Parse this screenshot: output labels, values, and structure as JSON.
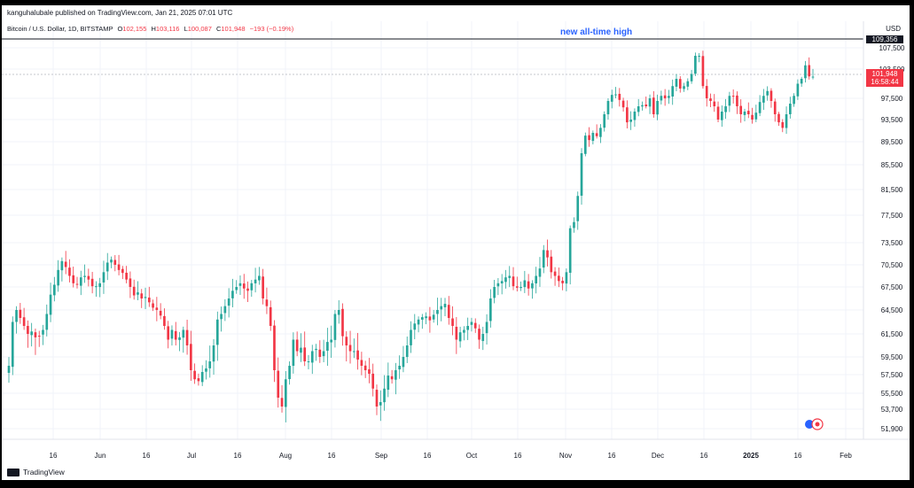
{
  "header": {
    "publisher": "kanguhalubale published on TradingView.com, Jan 21, 2025 07:01 UTC",
    "symbol": "Bitcoin / U.S. Dollar, 1D, BITSTAMP",
    "o_label": "O",
    "o_value": "102,155",
    "h_label": "H",
    "h_value": "103,116",
    "l_label": "L",
    "l_value": "100,087",
    "c_label": "C",
    "c_value": "101,948",
    "change": "−193 (−0.19%)",
    "currency": "USD"
  },
  "annotation": "new all-time high",
  "price_tag": {
    "price": "101,948",
    "countdown": "16:58:44"
  },
  "ath_tag": "109,356",
  "footer": {
    "brand": "TradingView"
  },
  "colors": {
    "up": "#26a69a",
    "down": "#f23645",
    "annotation": "#2962ff",
    "grid": "#f0f3fa"
  },
  "chart_data": {
    "type": "candlestick",
    "y_ticks": [
      "107,500",
      "103,500",
      "97,500",
      "93,500",
      "89,500",
      "85,500",
      "81,500",
      "77,500",
      "73,500",
      "70,500",
      "67,500",
      "64,500",
      "61,500",
      "59,500",
      "57,500",
      "55,500",
      "53,700",
      "51,900"
    ],
    "x_ticks": [
      "16",
      "Jun",
      "16",
      "Jul",
      "16",
      "Aug",
      "16",
      "Sep",
      "16",
      "Oct",
      "16",
      "Nov",
      "16",
      "Dec",
      "16",
      "2025",
      "16",
      "Feb"
    ],
    "closes": [
      58500,
      63000,
      64500,
      63500,
      62500,
      61500,
      61800,
      61200,
      61300,
      62000,
      64000,
      66500,
      67800,
      69800,
      71000,
      70200,
      69000,
      68000,
      67800,
      68800,
      69000,
      68500,
      67600,
      67600,
      68000,
      69500,
      70800,
      71200,
      70500,
      69800,
      69400,
      68500,
      67500,
      66400,
      66800,
      66000,
      66200,
      65500,
      64800,
      64500,
      63800,
      62500,
      61000,
      62000,
      61000,
      61200,
      62000,
      60500,
      58000,
      57000,
      56800,
      57800,
      58200,
      59000,
      60500,
      63300,
      64000,
      65000,
      66000,
      67000,
      67500,
      68000,
      67300,
      67000,
      68000,
      68500,
      69000,
      66000,
      65000,
      62500,
      58000,
      55000,
      54000,
      57000,
      58500,
      61000,
      60000,
      60300,
      59000,
      59000,
      60000,
      60200,
      59500,
      60000,
      60800,
      61000,
      64000,
      64500,
      61300,
      60500,
      60000,
      60000,
      59200,
      58500,
      58000,
      57600,
      56000,
      54000,
      54500,
      56000,
      57400,
      57000,
      58000,
      58500,
      59500,
      60500,
      62000,
      62800,
      63300,
      63600,
      63700,
      63200,
      63900,
      64500,
      65000,
      65300,
      63500,
      62500,
      61000,
      61700,
      62000,
      62500,
      63000,
      62200,
      61000,
      61500,
      63000,
      66000,
      67500,
      68000,
      68300,
      68800,
      69000,
      67600,
      67400,
      67500,
      68400,
      67300,
      68000,
      69000,
      70000,
      72500,
      71500,
      69500,
      69000,
      68300,
      68000,
      69500,
      75600,
      76500,
      80500,
      87500,
      90600,
      89800,
      91100,
      90500,
      92000,
      94500,
      97000,
      98200,
      98300,
      97200,
      95800,
      93000,
      93500,
      95000,
      96000,
      96200,
      96000,
      97500,
      94500,
      97000,
      98000,
      97500,
      98000,
      100000,
      101500,
      99500,
      100000,
      101000,
      102500,
      106000,
      106000,
      100000,
      97500,
      97000,
      96000,
      93500,
      95000,
      96000,
      98000,
      98000,
      96000,
      94500,
      95000,
      94500,
      93500,
      94800,
      96800,
      98000,
      99000,
      97000,
      94500,
      93000,
      92000,
      94500,
      96500,
      98000,
      100500,
      101500,
      104200,
      102000,
      101948
    ]
  }
}
